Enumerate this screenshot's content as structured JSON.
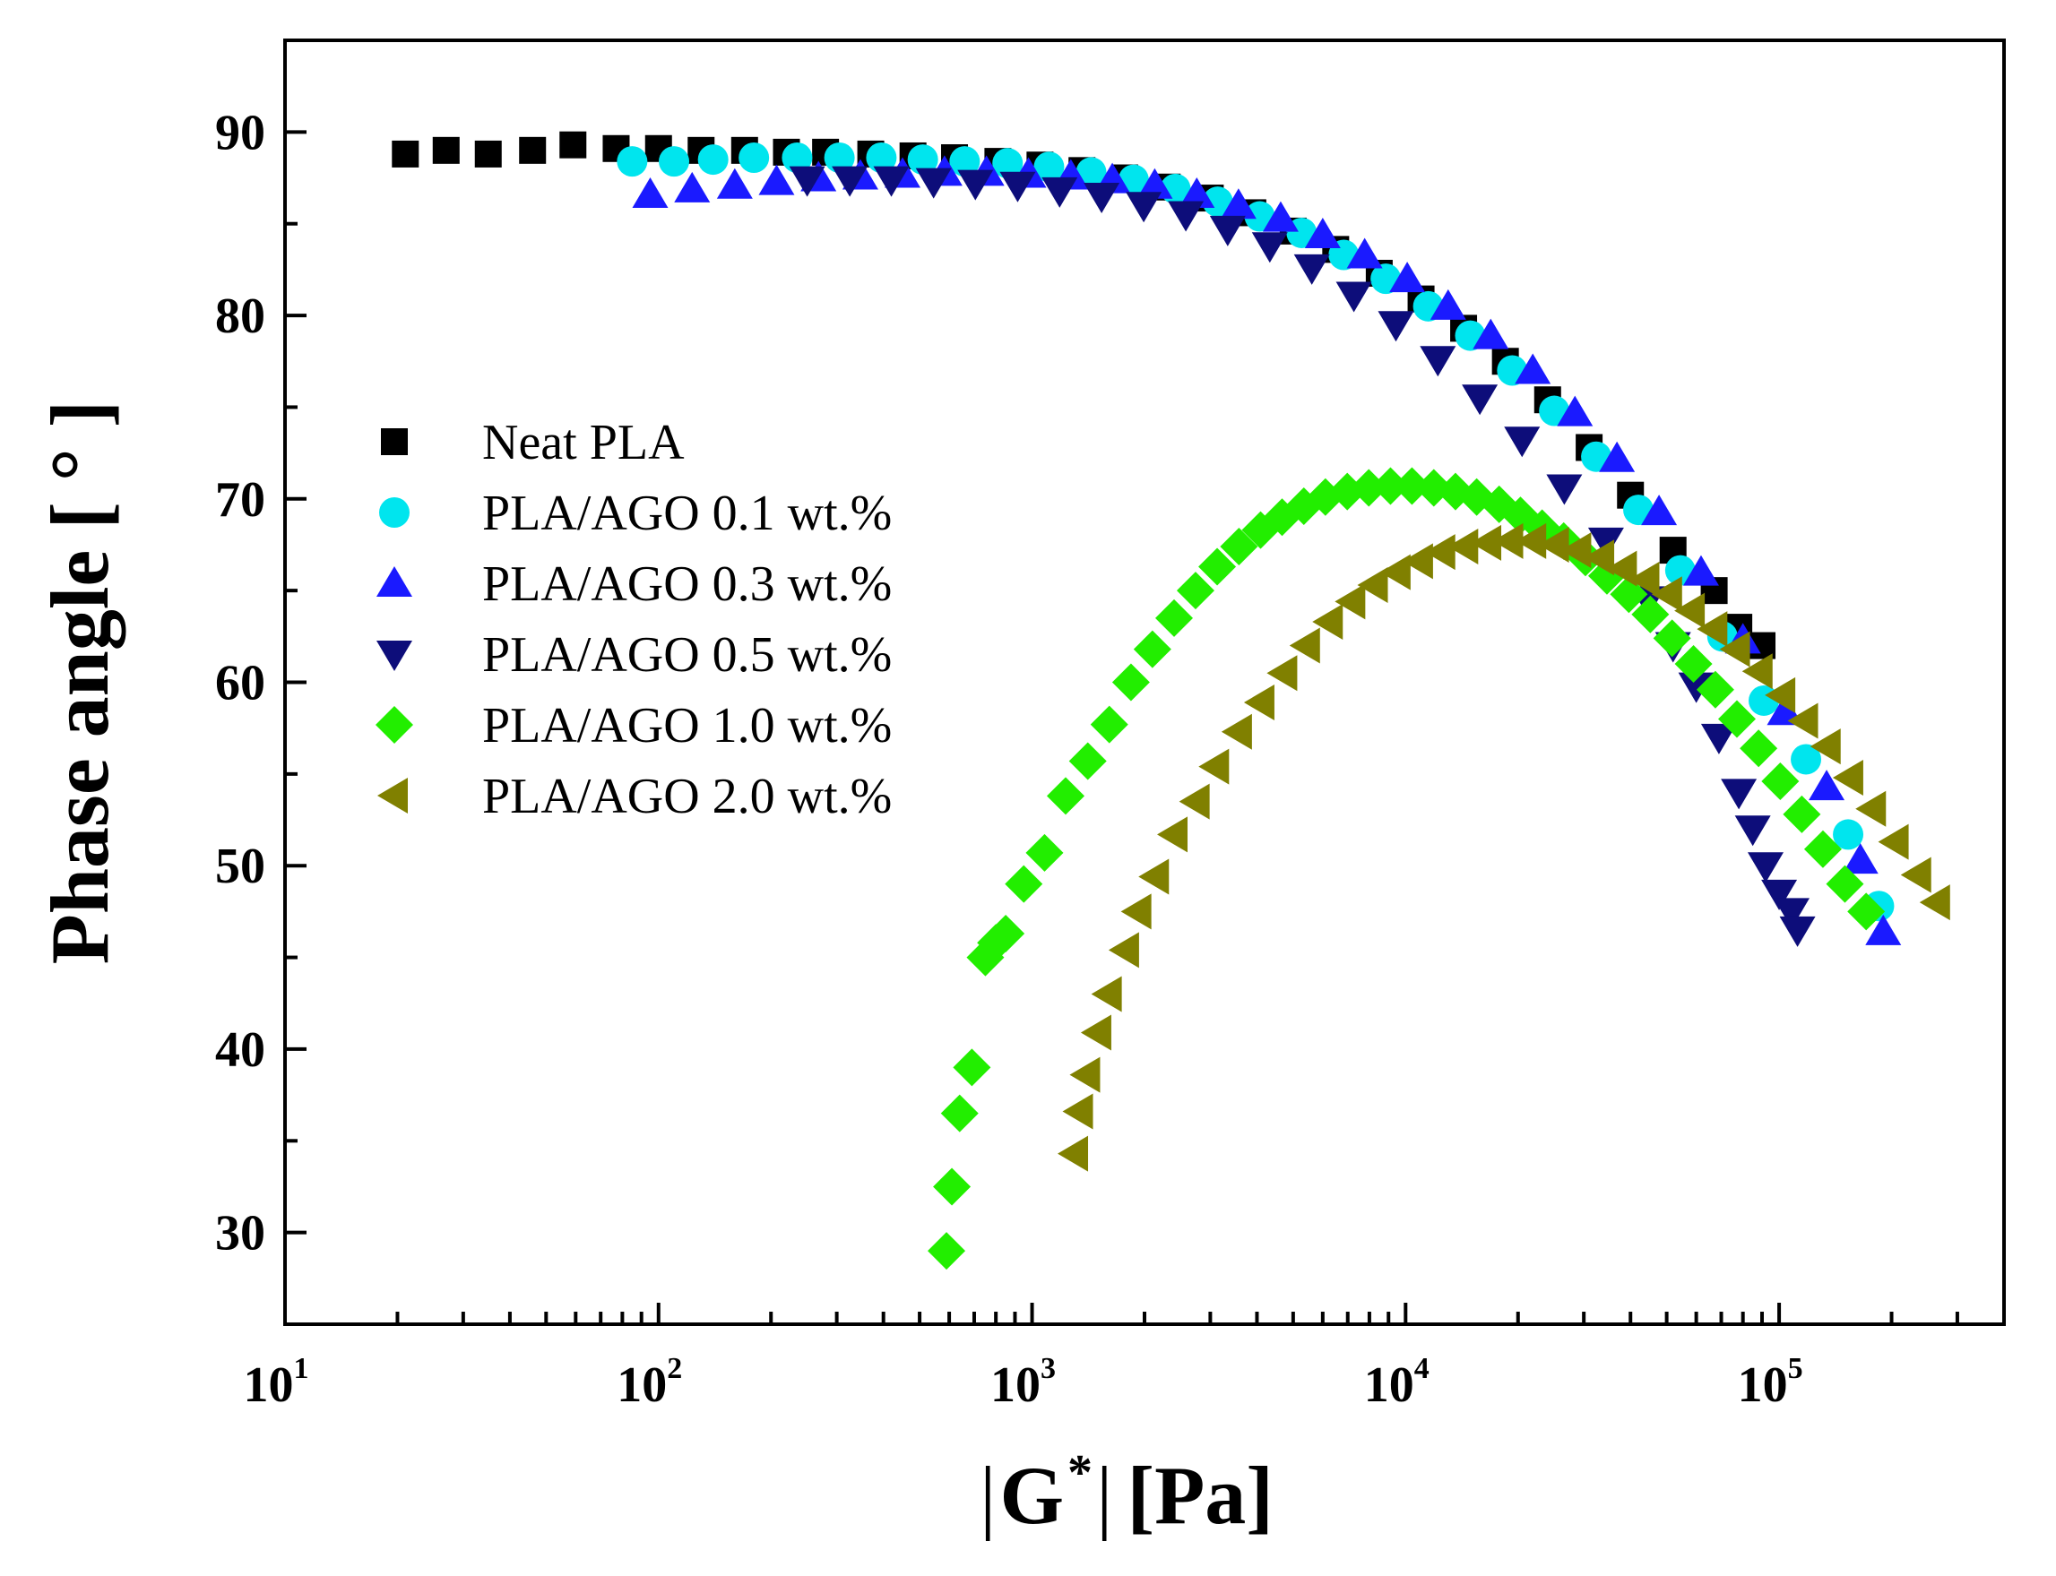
{
  "chart_data": {
    "type": "scatter",
    "xlabel": "|G*| [Pa]",
    "xlabel_parts": {
      "main": "G",
      "sup": "*",
      "unit": "[Pa]"
    },
    "ylabel": "Phase angle [ ° ]",
    "x_scale": "log",
    "xlim": [
      10,
      400000
    ],
    "ylim": [
      25,
      95
    ],
    "x_ticks": [
      {
        "value": 10,
        "base": "10",
        "exp": "1"
      },
      {
        "value": 100,
        "base": "10",
        "exp": "2"
      },
      {
        "value": 1000,
        "base": "10",
        "exp": "3"
      },
      {
        "value": 10000,
        "base": "10",
        "exp": "4"
      },
      {
        "value": 100000,
        "base": "10",
        "exp": "5"
      }
    ],
    "y_ticks": [
      {
        "value": 30,
        "label": "30"
      },
      {
        "value": 40,
        "label": "40"
      },
      {
        "value": 50,
        "label": "50"
      },
      {
        "value": 60,
        "label": "60"
      },
      {
        "value": 70,
        "label": "70"
      },
      {
        "value": 80,
        "label": "80"
      },
      {
        "value": 90,
        "label": "90"
      }
    ],
    "grid": false,
    "legend_position": "center-left",
    "series": [
      {
        "name": "Neat PLA",
        "marker": "square",
        "color": "#000000",
        "points": [
          [
            21,
            88.8
          ],
          [
            27,
            89
          ],
          [
            35,
            88.8
          ],
          [
            46,
            89
          ],
          [
            59,
            89.3
          ],
          [
            77,
            89.1
          ],
          [
            100,
            89.1
          ],
          [
            130,
            89
          ],
          [
            170,
            89
          ],
          [
            220,
            88.9
          ],
          [
            280,
            88.9
          ],
          [
            370,
            88.8
          ],
          [
            480,
            88.7
          ],
          [
            620,
            88.6
          ],
          [
            810,
            88.4
          ],
          [
            1050,
            88.2
          ],
          [
            1360,
            87.9
          ],
          [
            1770,
            87.5
          ],
          [
            2300,
            87
          ],
          [
            3000,
            86.4
          ],
          [
            3900,
            85.6
          ],
          [
            5000,
            84.6
          ],
          [
            6500,
            83.6
          ],
          [
            8500,
            82.3
          ],
          [
            11000,
            80.9
          ],
          [
            14300,
            79.3
          ],
          [
            18500,
            77.5
          ],
          [
            24000,
            75.4
          ],
          [
            31000,
            72.8
          ],
          [
            40000,
            70.2
          ],
          [
            52000,
            67.2
          ],
          [
            67000,
            65
          ],
          [
            78000,
            63
          ],
          [
            90000,
            62
          ]
        ]
      },
      {
        "name": "PLA/AGO 0.1 wt.%",
        "marker": "circle",
        "color": "#00e5ee",
        "points": [
          [
            85,
            88.4
          ],
          [
            110,
            88.4
          ],
          [
            140,
            88.5
          ],
          [
            180,
            88.6
          ],
          [
            235,
            88.6
          ],
          [
            305,
            88.6
          ],
          [
            395,
            88.6
          ],
          [
            510,
            88.5
          ],
          [
            660,
            88.4
          ],
          [
            860,
            88.3
          ],
          [
            1110,
            88.1
          ],
          [
            1440,
            87.8
          ],
          [
            1870,
            87.4
          ],
          [
            2420,
            86.9
          ],
          [
            3140,
            86.2
          ],
          [
            4070,
            85.4
          ],
          [
            5270,
            84.5
          ],
          [
            6830,
            83.3
          ],
          [
            8850,
            82
          ],
          [
            11500,
            80.5
          ],
          [
            14900,
            78.9
          ],
          [
            19300,
            77
          ],
          [
            25000,
            74.8
          ],
          [
            32400,
            72.3
          ],
          [
            42000,
            69.4
          ],
          [
            54400,
            66.1
          ],
          [
            70500,
            62.5
          ],
          [
            91000,
            59
          ],
          [
            118000,
            55.8
          ],
          [
            153000,
            51.7
          ],
          [
            185000,
            47.8
          ]
        ]
      },
      {
        "name": "PLA/AGO 0.3 wt.%",
        "marker": "triangle-up",
        "color": "#1a1aff",
        "points": [
          [
            95,
            86.6
          ],
          [
            123,
            86.9
          ],
          [
            160,
            87.1
          ],
          [
            207,
            87.3
          ],
          [
            268,
            87.5
          ],
          [
            347,
            87.6
          ],
          [
            450,
            87.7
          ],
          [
            583,
            87.8
          ],
          [
            755,
            87.8
          ],
          [
            978,
            87.7
          ],
          [
            1270,
            87.6
          ],
          [
            1640,
            87.4
          ],
          [
            2130,
            87.1
          ],
          [
            2760,
            86.6
          ],
          [
            3570,
            86
          ],
          [
            4630,
            85.3
          ],
          [
            6000,
            84.4
          ],
          [
            7770,
            83.3
          ],
          [
            10100,
            82
          ],
          [
            13000,
            80.5
          ],
          [
            16900,
            78.9
          ],
          [
            21900,
            77
          ],
          [
            28400,
            74.7
          ],
          [
            36800,
            72.2
          ],
          [
            47700,
            69.3
          ],
          [
            61800,
            66
          ],
          [
            80000,
            62.3
          ],
          [
            103600,
            58.4
          ],
          [
            134000,
            54.3
          ],
          [
            165000,
            50.3
          ],
          [
            190000,
            46.4
          ]
        ]
      },
      {
        "name": "PLA/AGO 0.5 wt.%",
        "marker": "triangle-down",
        "color": "#0d0d7a",
        "points": [
          [
            250,
            87.4
          ],
          [
            325,
            87.4
          ],
          [
            420,
            87.4
          ],
          [
            545,
            87.3
          ],
          [
            705,
            87.2
          ],
          [
            915,
            87.1
          ],
          [
            1185,
            86.8
          ],
          [
            1535,
            86.5
          ],
          [
            1990,
            86
          ],
          [
            2580,
            85.5
          ],
          [
            3340,
            84.7
          ],
          [
            4330,
            83.8
          ],
          [
            5610,
            82.6
          ],
          [
            7270,
            81.1
          ],
          [
            9420,
            79.5
          ],
          [
            12200,
            77.6
          ],
          [
            15800,
            75.5
          ],
          [
            20500,
            73.2
          ],
          [
            26600,
            70.6
          ],
          [
            34400,
            67.7
          ],
          [
            44600,
            64.5
          ],
          [
            52000,
            62
          ],
          [
            60000,
            59.8
          ],
          [
            69000,
            57
          ],
          [
            78000,
            54
          ],
          [
            85000,
            52
          ],
          [
            92000,
            50
          ],
          [
            100000,
            48.5
          ],
          [
            108000,
            47.5
          ],
          [
            112000,
            46.5
          ]
        ]
      },
      {
        "name": "PLA/AGO 1.0 wt.%",
        "marker": "diamond",
        "color": "#22ee00",
        "points": [
          [
            590,
            29
          ],
          [
            610,
            32.5
          ],
          [
            640,
            36.5
          ],
          [
            690,
            39
          ],
          [
            750,
            45
          ],
          [
            800,
            45.8
          ],
          [
            850,
            46.3
          ],
          [
            950,
            49
          ],
          [
            1080,
            50.7
          ],
          [
            1230,
            53.8
          ],
          [
            1410,
            55.7
          ],
          [
            1610,
            57.7
          ],
          [
            1840,
            60
          ],
          [
            2100,
            61.8
          ],
          [
            2400,
            63.5
          ],
          [
            2740,
            65
          ],
          [
            3130,
            66.3
          ],
          [
            3580,
            67.4
          ],
          [
            4090,
            68.3
          ],
          [
            4670,
            69
          ],
          [
            5340,
            69.6
          ],
          [
            6100,
            70.1
          ],
          [
            6980,
            70.4
          ],
          [
            7970,
            70.6
          ],
          [
            9110,
            70.7
          ],
          [
            10400,
            70.7
          ],
          [
            11900,
            70.6
          ],
          [
            13600,
            70.4
          ],
          [
            15500,
            70.1
          ],
          [
            17800,
            69.7
          ],
          [
            20300,
            69.1
          ],
          [
            23200,
            68.4
          ],
          [
            26500,
            67.7
          ],
          [
            30300,
            66.8
          ],
          [
            34600,
            65.8
          ],
          [
            39600,
            64.8
          ],
          [
            45200,
            63.7
          ],
          [
            51700,
            62.4
          ],
          [
            59000,
            61
          ],
          [
            67500,
            59.6
          ],
          [
            77100,
            58
          ],
          [
            88100,
            56.4
          ],
          [
            100700,
            54.6
          ],
          [
            115000,
            52.8
          ],
          [
            131000,
            50.9
          ],
          [
            150000,
            49
          ],
          [
            171000,
            47.5
          ]
        ]
      },
      {
        "name": "PLA/AGO 2.0 wt.%",
        "marker": "triangle-left",
        "color": "#808000",
        "points": [
          [
            1300,
            34.3
          ],
          [
            1340,
            36.6
          ],
          [
            1400,
            38.6
          ],
          [
            1500,
            40.9
          ],
          [
            1600,
            43
          ],
          [
            1780,
            45.4
          ],
          [
            1920,
            47.5
          ],
          [
            2140,
            49.4
          ],
          [
            2400,
            51.7
          ],
          [
            2750,
            53.5
          ],
          [
            3100,
            55.4
          ],
          [
            3570,
            57.3
          ],
          [
            4100,
            58.9
          ],
          [
            4720,
            60.5
          ],
          [
            5430,
            62
          ],
          [
            6250,
            63.3
          ],
          [
            7180,
            64.4
          ],
          [
            8250,
            65.3
          ],
          [
            9490,
            66
          ],
          [
            10900,
            66.6
          ],
          [
            12500,
            67.1
          ],
          [
            14400,
            67.4
          ],
          [
            16600,
            67.6
          ],
          [
            19000,
            67.7
          ],
          [
            21900,
            67.7
          ],
          [
            25200,
            67.5
          ],
          [
            28900,
            67.2
          ],
          [
            33300,
            66.8
          ],
          [
            38300,
            66.2
          ],
          [
            44000,
            65.6
          ],
          [
            50600,
            64.8
          ],
          [
            58200,
            63.9
          ],
          [
            66900,
            62.9
          ],
          [
            76900,
            61.8
          ],
          [
            88400,
            60.6
          ],
          [
            101700,
            59.3
          ],
          [
            117000,
            57.9
          ],
          [
            134500,
            56.5
          ],
          [
            154600,
            54.8
          ],
          [
            177800,
            53.1
          ],
          [
            204500,
            51.3
          ],
          [
            235000,
            49.5
          ],
          [
            264000,
            48
          ]
        ]
      }
    ]
  }
}
